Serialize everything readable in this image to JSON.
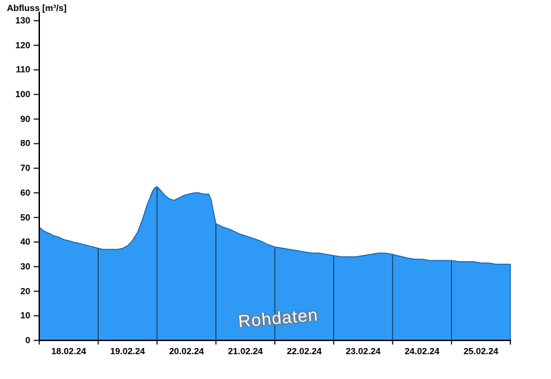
{
  "title": "Abfluss [m³/s]",
  "watermark": "Rohdaten",
  "colors": {
    "background": "#FFFFFF",
    "fill": "#2F9AF5",
    "outline": "#0F5CA8",
    "axis": "#000000",
    "separator": "#1A1A1A",
    "watermark_text": "#FFFFFF",
    "watermark_glow": "#777777"
  },
  "chart_data": {
    "type": "area",
    "title": "Abfluss [m³/s]",
    "ylabel": "Abfluss [m³/s]",
    "xlabel": "",
    "unit": "m³/s",
    "ylim": [
      0,
      130
    ],
    "yticks": [
      0,
      10,
      20,
      30,
      40,
      50,
      60,
      70,
      80,
      90,
      100,
      110,
      120,
      130
    ],
    "x_range_days": [
      0,
      8
    ],
    "day_labels": [
      "18.02.24",
      "19.02.24",
      "20.02.24",
      "21.02.24",
      "22.02.24",
      "23.02.24",
      "24.02.24",
      "25.02.24"
    ],
    "grid": "vertical day-separator lines inside filled area only",
    "legend": "none",
    "annotation": "Rohdaten",
    "series": [
      {
        "name": "Abfluss (Rohdaten)",
        "x_days": [
          0,
          0.08,
          0.17,
          0.25,
          0.33,
          0.42,
          0.5,
          0.58,
          0.67,
          0.75,
          0.83,
          0.92,
          1.0,
          1.08,
          1.17,
          1.25,
          1.33,
          1.42,
          1.5,
          1.58,
          1.67,
          1.75,
          1.83,
          1.88,
          1.92,
          1.96,
          2.0,
          2.04,
          2.08,
          2.13,
          2.21,
          2.29,
          2.38,
          2.46,
          2.54,
          2.63,
          2.71,
          2.79,
          2.88,
          2.92,
          2.96,
          3.0,
          3.04,
          3.13,
          3.25,
          3.38,
          3.5,
          3.63,
          3.75,
          3.88,
          4.0,
          4.13,
          4.25,
          4.38,
          4.5,
          4.63,
          4.75,
          4.88,
          5.0,
          5.13,
          5.25,
          5.38,
          5.5,
          5.63,
          5.75,
          5.88,
          6.0,
          6.08,
          6.17,
          6.25,
          6.38,
          6.5,
          6.63,
          6.75,
          6.88,
          7.0,
          7.13,
          7.25,
          7.38,
          7.5,
          7.63,
          7.75,
          7.88,
          8.0
        ],
        "values": [
          46,
          44.5,
          43.5,
          42.5,
          42,
          41,
          40.5,
          40,
          39.5,
          39,
          38.5,
          38,
          37.5,
          37,
          37,
          37,
          37,
          37.5,
          38.5,
          40.5,
          44,
          49,
          55,
          58,
          60.5,
          62,
          62.5,
          61.5,
          60.5,
          59,
          57.5,
          57,
          58,
          59,
          59.5,
          60,
          60,
          59.5,
          59.5,
          57,
          52,
          47.5,
          47,
          46,
          45,
          43.5,
          42.5,
          41.5,
          40.5,
          39,
          38,
          37.5,
          37,
          36.5,
          36,
          35.5,
          35.5,
          35,
          34.5,
          34,
          34,
          34,
          34.5,
          35,
          35.5,
          35.5,
          35,
          34.5,
          34,
          33.5,
          33,
          33,
          32.5,
          32.5,
          32.5,
          32.5,
          32,
          32,
          32,
          31.5,
          31.5,
          31,
          31,
          31
        ]
      }
    ]
  }
}
